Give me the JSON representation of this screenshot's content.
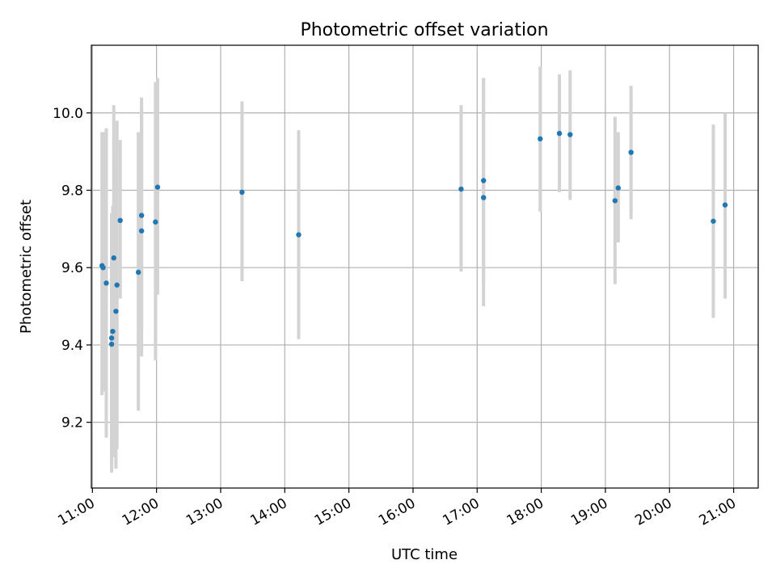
{
  "chart_data": {
    "type": "scatter",
    "title": "Photometric offset variation",
    "xlabel": "UTC time",
    "ylabel": "Photometric offset",
    "x_unit": "time of day (UTC, HH:MM)",
    "x_ticks": [
      "11:00",
      "12:00",
      "13:00",
      "14:00",
      "15:00",
      "16:00",
      "17:00",
      "18:00",
      "19:00",
      "20:00",
      "21:00"
    ],
    "y_ticks": [
      "9.2",
      "9.4",
      "9.6",
      "9.8",
      "10.0"
    ],
    "xlim": [
      "10:59",
      "21:23"
    ],
    "ylim": [
      9.03,
      10.175
    ],
    "grid": true,
    "marker_color": "#1f77b4",
    "errorbar_color": "#d3d3d3",
    "points": [
      {
        "x": "11:09",
        "y": 9.605,
        "err_low": 9.27,
        "err_high": 9.95
      },
      {
        "x": "11:10",
        "y": 9.6,
        "err_low": 9.28,
        "err_high": 9.95
      },
      {
        "x": "11:13",
        "y": 9.56,
        "err_low": 9.16,
        "err_high": 9.96
      },
      {
        "x": "11:18",
        "y": 9.402,
        "err_low": 9.07,
        "err_high": 9.74
      },
      {
        "x": "11:18",
        "y": 9.418,
        "err_low": 9.1,
        "err_high": 9.74
      },
      {
        "x": "11:19",
        "y": 9.435,
        "err_low": 9.11,
        "err_high": 9.76
      },
      {
        "x": "11:20",
        "y": 9.625,
        "err_low": 9.23,
        "err_high": 10.02
      },
      {
        "x": "11:22",
        "y": 9.487,
        "err_low": 9.08,
        "err_high": 9.88
      },
      {
        "x": "11:23",
        "y": 9.555,
        "err_low": 9.13,
        "err_high": 9.98
      },
      {
        "x": "11:26",
        "y": 9.722,
        "err_low": 9.52,
        "err_high": 9.93
      },
      {
        "x": "11:43",
        "y": 9.588,
        "err_low": 9.23,
        "err_high": 9.95
      },
      {
        "x": "11:46",
        "y": 9.735,
        "err_low": 9.44,
        "err_high": 10.04
      },
      {
        "x": "11:46",
        "y": 9.695,
        "err_low": 9.37,
        "err_high": 10.01
      },
      {
        "x": "11:59",
        "y": 9.718,
        "err_low": 9.36,
        "err_high": 10.08
      },
      {
        "x": "12:01",
        "y": 9.808,
        "err_low": 9.53,
        "err_high": 10.09
      },
      {
        "x": "13:20",
        "y": 9.795,
        "err_low": 9.565,
        "err_high": 10.03
      },
      {
        "x": "14:13",
        "y": 9.685,
        "err_low": 9.415,
        "err_high": 9.955
      },
      {
        "x": "16:45",
        "y": 9.803,
        "err_low": 9.59,
        "err_high": 10.02
      },
      {
        "x": "17:06",
        "y": 9.781,
        "err_low": 9.5,
        "err_high": 10.09
      },
      {
        "x": "17:06",
        "y": 9.825,
        "err_low": 9.56,
        "err_high": 10.09
      },
      {
        "x": "17:59",
        "y": 9.933,
        "err_low": 9.745,
        "err_high": 10.12
      },
      {
        "x": "18:17",
        "y": 9.947,
        "err_low": 9.795,
        "err_high": 10.1
      },
      {
        "x": "18:27",
        "y": 9.944,
        "err_low": 9.775,
        "err_high": 10.11
      },
      {
        "x": "19:09",
        "y": 9.773,
        "err_low": 9.557,
        "err_high": 9.99
      },
      {
        "x": "19:12",
        "y": 9.806,
        "err_low": 9.665,
        "err_high": 9.95
      },
      {
        "x": "19:24",
        "y": 9.898,
        "err_low": 9.725,
        "err_high": 10.07
      },
      {
        "x": "20:41",
        "y": 9.72,
        "err_low": 9.47,
        "err_high": 9.97
      },
      {
        "x": "20:52",
        "y": 9.762,
        "err_low": 9.52,
        "err_high": 10.0
      }
    ]
  }
}
